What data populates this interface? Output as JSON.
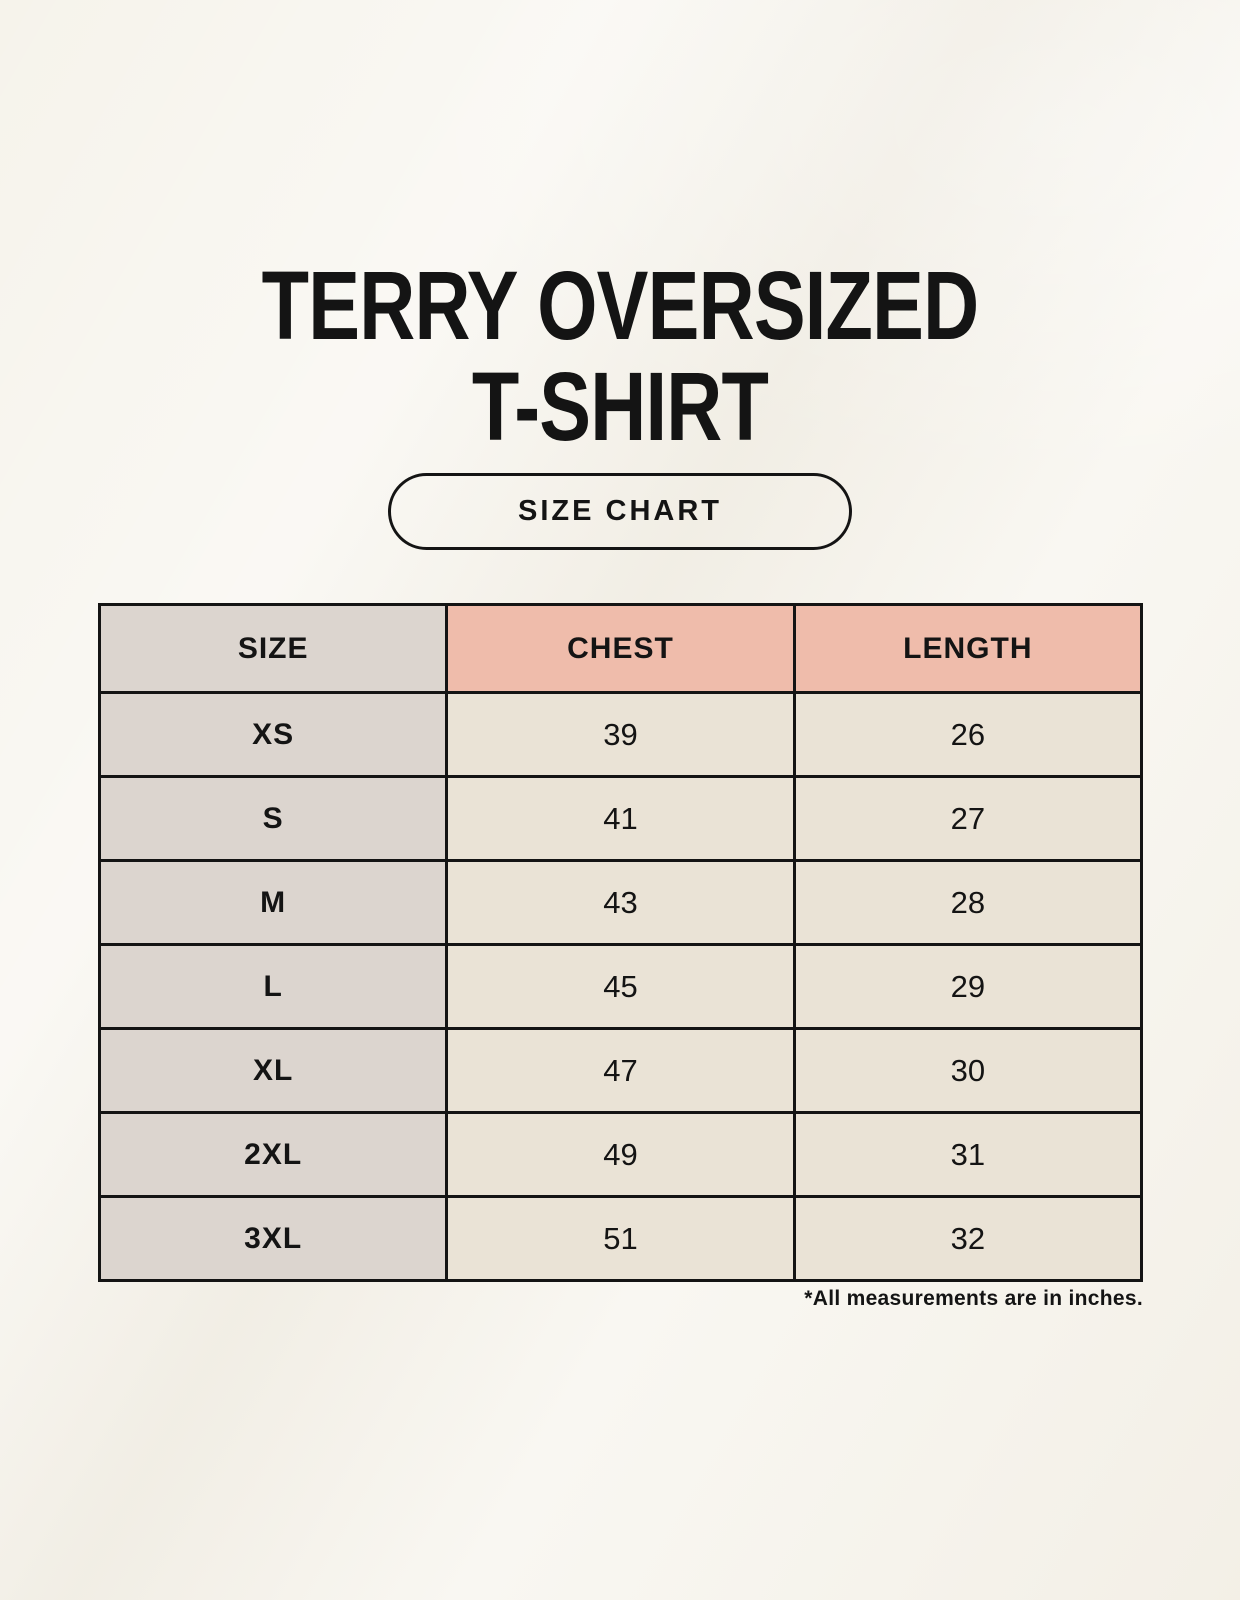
{
  "title": {
    "line1": "TERRY OVERSIZED",
    "line2": "T-SHIRT"
  },
  "badge": {
    "label": "SIZE CHART"
  },
  "table": {
    "columns": [
      {
        "key": "size",
        "label": "SIZE"
      },
      {
        "key": "chest",
        "label": "CHEST"
      },
      {
        "key": "length",
        "label": "LENGTH"
      }
    ],
    "rows": [
      {
        "size": "XS",
        "chest": "39",
        "length": "26"
      },
      {
        "size": "S",
        "chest": "41",
        "length": "27"
      },
      {
        "size": "M",
        "chest": "43",
        "length": "28"
      },
      {
        "size": "L",
        "chest": "45",
        "length": "29"
      },
      {
        "size": "XL",
        "chest": "47",
        "length": "30"
      },
      {
        "size": "2XL",
        "chest": "49",
        "length": "31"
      },
      {
        "size": "3XL",
        "chest": "51",
        "length": "32"
      }
    ]
  },
  "footnote": "*All measurements are in inches.",
  "colors": {
    "background": "#f6f3eb",
    "accent_header": "#efbcab",
    "size_column": "#dcd5cf",
    "cell": "#eae3d6",
    "border": "#141414",
    "text": "#141414"
  }
}
